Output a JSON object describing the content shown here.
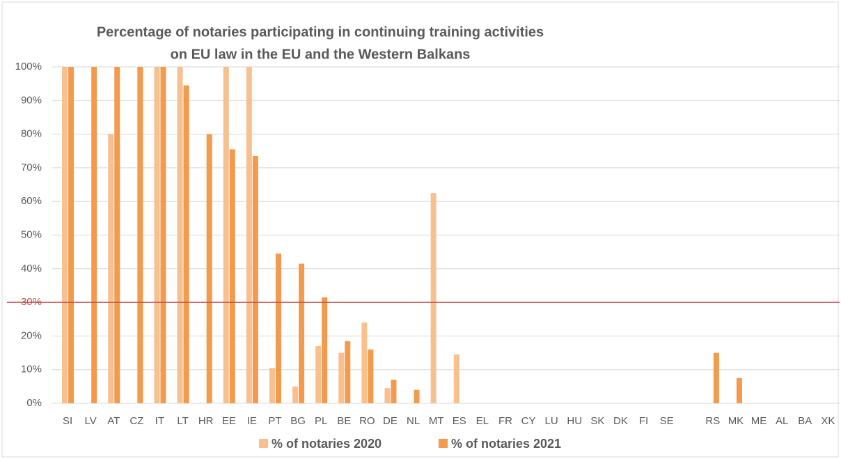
{
  "chart_data": {
    "type": "bar",
    "title": [
      "Percentage of notaries participating in continuing training activities",
      "on EU law in the EU and the Western Balkans"
    ],
    "categories": [
      "SI",
      "LV",
      "AT",
      "CZ",
      "IT",
      "LT",
      "HR",
      "EE",
      "IE",
      "PT",
      "BG",
      "PL",
      "BE",
      "RO",
      "DE",
      "NL",
      "MT",
      "ES",
      "EL",
      "FR",
      "CY",
      "LU",
      "HU",
      "SK",
      "DK",
      "FI",
      "SE",
      null,
      "RS",
      "MK",
      "ME",
      "AL",
      "BA",
      "XK"
    ],
    "series": [
      {
        "name": "% of notaries 2020",
        "color": "#f9c08f",
        "values": [
          100,
          0,
          80,
          0,
          100,
          100,
          0,
          100,
          100,
          10.5,
          5,
          17,
          15,
          24,
          4.5,
          0,
          62.5,
          14.5,
          0,
          0,
          0,
          0,
          0,
          0,
          0,
          0,
          0,
          null,
          0,
          0,
          0,
          0,
          0,
          0
        ]
      },
      {
        "name": "% of notaries 2021",
        "color": "#f39a4c",
        "values": [
          100,
          100,
          100,
          100,
          100,
          94.5,
          80,
          75.5,
          73.5,
          44.5,
          41.5,
          31.5,
          18.5,
          16,
          7,
          4,
          0,
          0,
          0,
          0,
          0,
          0,
          0,
          0,
          0,
          0,
          0,
          null,
          15,
          7.5,
          0,
          0,
          0,
          0
        ]
      }
    ],
    "ylim": [
      0,
      100
    ],
    "yticks": [
      {
        "value": 0,
        "label": "0%"
      },
      {
        "value": 10,
        "label": "10%"
      },
      {
        "value": 20,
        "label": "20%"
      },
      {
        "value": 30,
        "label": "30%"
      },
      {
        "value": 40,
        "label": "40%"
      },
      {
        "value": 50,
        "label": "50%"
      },
      {
        "value": 60,
        "label": "60%"
      },
      {
        "value": 70,
        "label": "70%"
      },
      {
        "value": 80,
        "label": "80%"
      },
      {
        "value": 90,
        "label": "90%"
      },
      {
        "value": 100,
        "label": "100%"
      }
    ],
    "grid": true,
    "reference_line": {
      "value": 30,
      "color": "#c0504d"
    },
    "legend": "bottom"
  }
}
